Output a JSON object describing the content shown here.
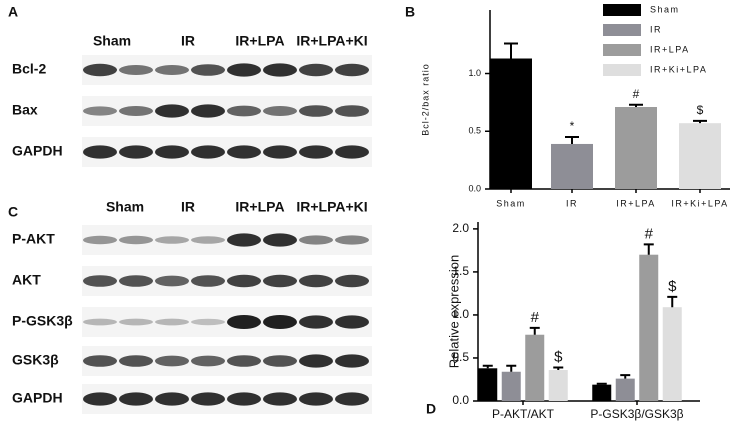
{
  "panel_labels": [
    "A",
    "B",
    "C",
    "D"
  ],
  "blot_a": {
    "groups": [
      "Sham",
      "IR",
      "IR+LPA",
      "IR+LPA+KI"
    ],
    "rows": [
      "Bcl-2",
      "Bax",
      "GAPDH"
    ]
  },
  "blot_c": {
    "groups": [
      "Sham",
      "IR",
      "IR+LPA",
      "IR+LPA+KI"
    ],
    "rows": [
      "P-AKT",
      "AKT",
      "P-GSK3β",
      "GSK3β",
      "GAPDH"
    ]
  },
  "chart_data": [
    {
      "type": "bar",
      "y_label": "Bcl-2/bax ratio",
      "categories": [
        "Sham",
        "IR",
        "IR+LPA",
        "IR+Ki+LPA"
      ],
      "values": [
        1.13,
        0.39,
        0.71,
        0.57
      ],
      "errors": [
        0.13,
        0.06,
        0.02,
        0.02
      ],
      "annotations": [
        null,
        "*",
        "#",
        "$"
      ],
      "colors": [
        "#000000",
        "#8e8e96",
        "#9c9c9c",
        "#dedede"
      ],
      "ylim": [
        0,
        1.55
      ],
      "yticks": [
        {
          "value": 0,
          "label": "0.0"
        },
        {
          "value": 0.5,
          "label": "0.5"
        },
        {
          "value": 1,
          "label": "1.0"
        }
      ],
      "legend": "top-right"
    },
    {
      "type": "grouped-bar",
      "y_label": "Relative expression",
      "categories": [
        "P-AKT/AKT",
        "P-GSK3β/GSK3β"
      ],
      "series": [
        {
          "color": "#000000",
          "values": [
            0.38,
            0.19
          ],
          "errors": [
            0.03,
            0.01
          ],
          "annotations": [
            null,
            null
          ]
        },
        {
          "color": "#8e8e96",
          "values": [
            0.34,
            0.26
          ],
          "errors": [
            0.07,
            0.04
          ],
          "annotations": [
            null,
            null
          ]
        },
        {
          "color": "#9c9c9c",
          "values": [
            0.77,
            1.7
          ],
          "errors": [
            0.08,
            0.12
          ],
          "annotations": [
            "#",
            "#"
          ]
        },
        {
          "color": "#dedede",
          "values": [
            0.36,
            1.09
          ],
          "errors": [
            0.03,
            0.12
          ],
          "annotations": [
            "$",
            "$"
          ]
        }
      ],
      "ylim": [
        0,
        2.08
      ],
      "yticks": [
        {
          "value": 0,
          "label": "0.0"
        },
        {
          "value": 0.5,
          "label": "0.5"
        },
        {
          "value": 1,
          "label": "1.0"
        },
        {
          "value": 1.5,
          "label": "1.5"
        },
        {
          "value": 2,
          "label": "2.0"
        }
      ]
    }
  ]
}
